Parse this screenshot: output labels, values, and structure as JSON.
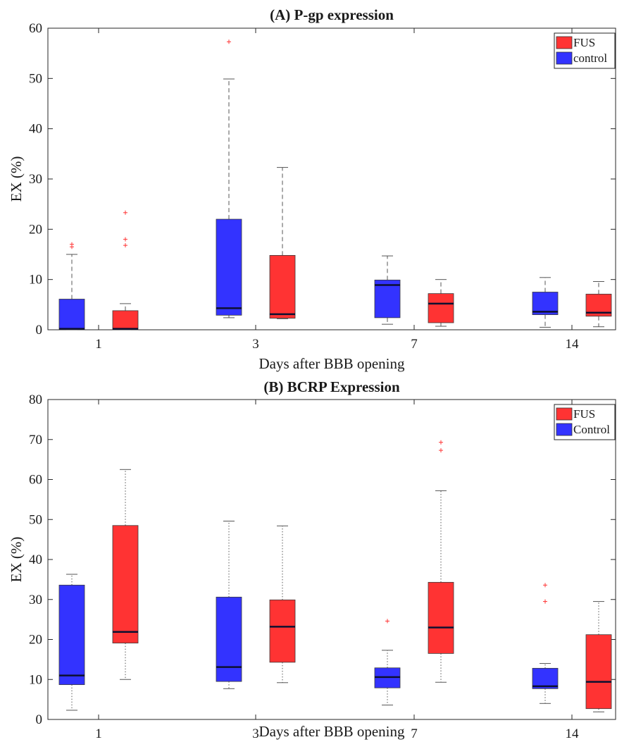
{
  "chart_data": [
    {
      "type": "box",
      "title": "(A) P-gp expression",
      "xlabel": "Days after BBB opening",
      "ylabel": "EX (%)",
      "ylim": [
        0,
        60
      ],
      "yticks": [
        0,
        10,
        20,
        30,
        40,
        50,
        60
      ],
      "categories": [
        "1",
        "3",
        "7",
        "14"
      ],
      "legend_position": "top-right",
      "whisker_style": "dashed",
      "series": [
        {
          "name": "control",
          "color": "#3333ff",
          "boxes": [
            {
              "whislo": 0,
              "q1": 0,
              "med": 0.2,
              "q3": 6.1,
              "whishi": 15.0,
              "fliers": [
                16.5,
                17.0
              ]
            },
            {
              "whislo": 2.4,
              "q1": 2.9,
              "med": 4.3,
              "q3": 22.0,
              "whishi": 49.9,
              "fliers": [
                57.3
              ]
            },
            {
              "whislo": 1.1,
              "q1": 2.4,
              "med": 8.9,
              "q3": 9.9,
              "whishi": 14.7,
              "fliers": []
            },
            {
              "whislo": 0.5,
              "q1": 3.0,
              "med": 3.6,
              "q3": 7.5,
              "whishi": 10.4,
              "fliers": []
            }
          ]
        },
        {
          "name": "FUS",
          "color": "#ff3333",
          "boxes": [
            {
              "whislo": 0,
              "q1": 0,
              "med": 0.2,
              "q3": 3.8,
              "whishi": 5.2,
              "fliers": [
                16.8,
                18.0,
                23.3
              ]
            },
            {
              "whislo": 2.2,
              "q1": 2.3,
              "med": 3.1,
              "q3": 14.8,
              "whishi": 32.3,
              "fliers": []
            },
            {
              "whislo": 0.7,
              "q1": 1.4,
              "med": 5.2,
              "q3": 7.2,
              "whishi": 10.0,
              "fliers": []
            },
            {
              "whislo": 0.6,
              "q1": 2.7,
              "med": 3.4,
              "q3": 7.1,
              "whishi": 9.6,
              "fliers": []
            }
          ]
        }
      ],
      "legend_order": [
        "FUS",
        "control"
      ]
    },
    {
      "type": "box",
      "title": "(B) BCRP Expression",
      "xlabel": "Days after BBB opening",
      "ylabel": "EX (%)",
      "ylim": [
        0,
        80
      ],
      "yticks": [
        0,
        10,
        20,
        30,
        40,
        50,
        60,
        70,
        80
      ],
      "categories": [
        "1",
        "3",
        "7",
        "14"
      ],
      "legend_position": "top-right",
      "whisker_style": "dotted",
      "series": [
        {
          "name": "Control",
          "color": "#3333ff",
          "boxes": [
            {
              "whislo": 2.3,
              "q1": 8.7,
              "med": 11.0,
              "q3": 33.6,
              "whishi": 36.3,
              "fliers": []
            },
            {
              "whislo": 7.7,
              "q1": 9.5,
              "med": 13.1,
              "q3": 30.6,
              "whishi": 49.6,
              "fliers": []
            },
            {
              "whislo": 3.6,
              "q1": 7.9,
              "med": 10.6,
              "q3": 12.9,
              "whishi": 17.3,
              "fliers": [
                24.6
              ]
            },
            {
              "whislo": 4.0,
              "q1": 7.7,
              "med": 8.3,
              "q3": 12.8,
              "whishi": 14.0,
              "fliers": [
                29.5,
                33.6
              ]
            }
          ]
        },
        {
          "name": "FUS",
          "color": "#ff3333",
          "boxes": [
            {
              "whislo": 10.0,
              "q1": 19.1,
              "med": 21.9,
              "q3": 48.5,
              "whishi": 62.5,
              "fliers": []
            },
            {
              "whislo": 9.2,
              "q1": 14.3,
              "med": 23.2,
              "q3": 29.9,
              "whishi": 48.4,
              "fliers": []
            },
            {
              "whislo": 9.3,
              "q1": 16.5,
              "med": 23.0,
              "q3": 34.3,
              "whishi": 57.2,
              "fliers": [
                67.3,
                69.3
              ]
            },
            {
              "whislo": 1.9,
              "q1": 2.7,
              "med": 9.4,
              "q3": 21.2,
              "whishi": 29.5,
              "fliers": []
            }
          ]
        }
      ],
      "legend_order": [
        "FUS",
        "Control"
      ]
    }
  ]
}
